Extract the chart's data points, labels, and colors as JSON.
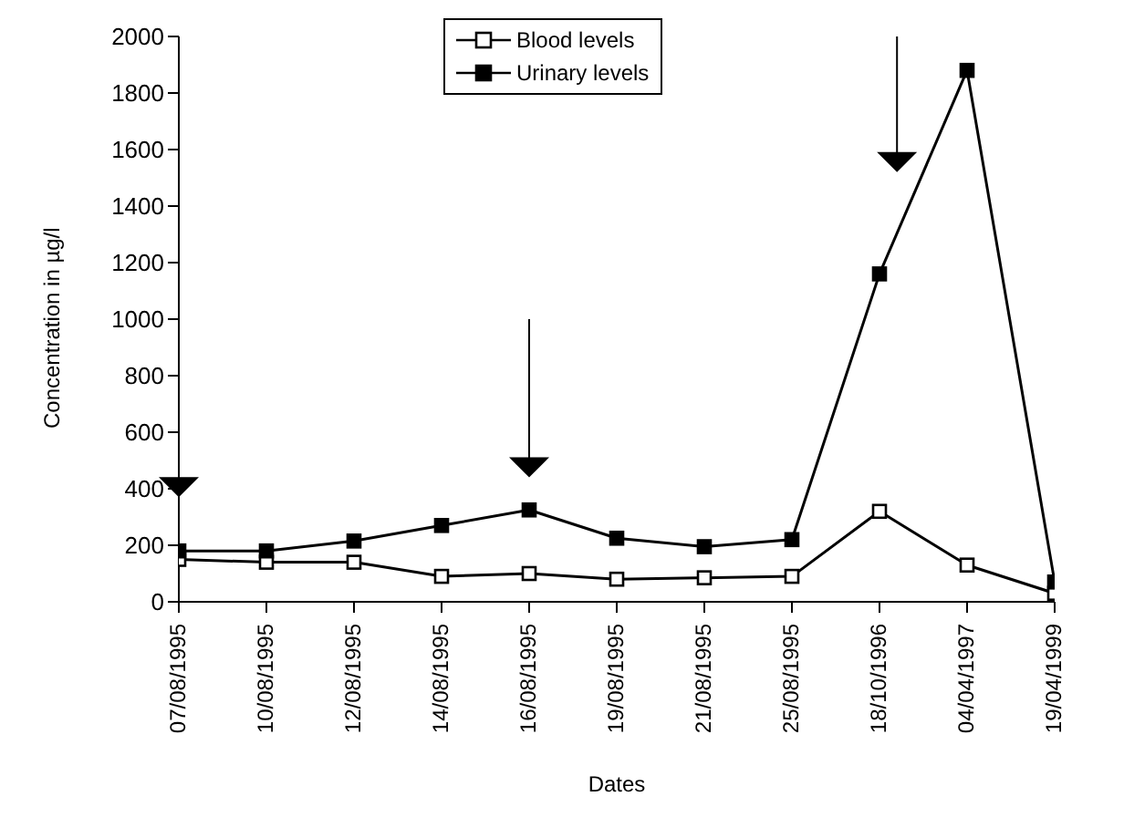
{
  "chart_data": {
    "type": "line",
    "xlabel": "Dates",
    "ylabel": "Concentration in µg/l",
    "categories": [
      "07/08/1995",
      "10/08/1995",
      "12/08/1995",
      "14/08/1995",
      "16/08/1995",
      "19/08/1995",
      "21/08/1995",
      "25/08/1995",
      "18/10/1996",
      "04/04/1997",
      "19/04/1999"
    ],
    "series": [
      {
        "name": "Blood levels",
        "color": "#000000",
        "values": [
          150,
          140,
          140,
          90,
          100,
          80,
          85,
          90,
          320,
          130,
          30
        ]
      },
      {
        "name": "Urinary levels",
        "color": "#000000",
        "values": [
          180,
          180,
          215,
          270,
          325,
          225,
          195,
          220,
          1160,
          1880,
          70
        ]
      }
    ],
    "ylim": [
      0,
      2000
    ],
    "yticks": [
      0,
      200,
      400,
      600,
      800,
      1000,
      1200,
      1400,
      1600,
      1800,
      2000
    ],
    "legend": "top",
    "marker": "square",
    "line_style": "solid"
  }
}
